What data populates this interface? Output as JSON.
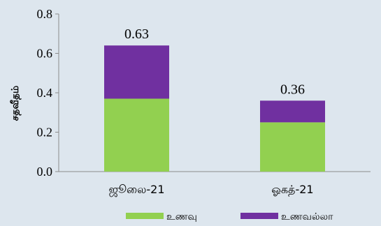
{
  "chart_data": {
    "type": "bar",
    "stacked": true,
    "categories": [
      "ஜூலை-21",
      "ஓகத்-21"
    ],
    "series": [
      {
        "name": "உணவு",
        "values": [
          0.37,
          0.25
        ],
        "color": "#92d050"
      },
      {
        "name": "உணவல்லா",
        "values": [
          0.27,
          0.11
        ],
        "color": "#7030a0"
      }
    ],
    "data_labels": [
      "0.63",
      "0.36"
    ],
    "ylabel": "சதவீதம்",
    "ylim": [
      0,
      0.8
    ],
    "yticks": [
      "0.0",
      "0.2",
      "0.4",
      "0.6",
      "0.8"
    ],
    "grid": false,
    "legend": "bottom"
  }
}
